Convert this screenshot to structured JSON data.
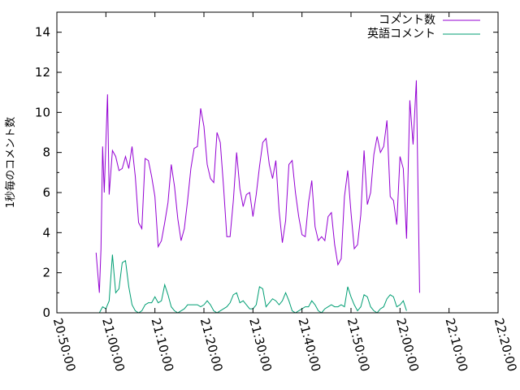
{
  "chart_data": {
    "type": "line",
    "title": "",
    "xlabel": "",
    "ylabel": "1秒毎のコメント数",
    "xlim": [
      "20:50:00",
      "22:20:00"
    ],
    "ylim": [
      0,
      15
    ],
    "xticks": [
      "20:50:00",
      "21:00:00",
      "21:10:00",
      "21:20:00",
      "21:30:00",
      "21:40:00",
      "21:50:00",
      "22:00:00",
      "22:10:00",
      "22:20:00"
    ],
    "yticks": [
      "0",
      "2",
      "4",
      "6",
      "8",
      "10",
      "12",
      "14"
    ],
    "grid": false,
    "legend_position": "top-right",
    "series": [
      {
        "name": "コメント数",
        "color": "#9400d3",
        "points": [
          [
            "20:58:00",
            3.0
          ],
          [
            "20:58:40",
            1.0
          ],
          [
            "20:59:00",
            3.2
          ],
          [
            "20:59:20",
            8.3
          ],
          [
            "20:59:40",
            6.0
          ],
          [
            "21:00:00",
            8.5
          ],
          [
            "21:00:20",
            10.9
          ],
          [
            "21:00:40",
            5.9
          ],
          [
            "21:01:20",
            8.1
          ],
          [
            "21:02:00",
            7.8
          ],
          [
            "21:02:40",
            7.1
          ],
          [
            "21:03:20",
            7.2
          ],
          [
            "21:04:00",
            7.8
          ],
          [
            "21:04:40",
            7.2
          ],
          [
            "21:05:20",
            8.3
          ],
          [
            "21:06:00",
            6.8
          ],
          [
            "21:06:40",
            4.5
          ],
          [
            "21:07:20",
            4.2
          ],
          [
            "21:08:00",
            7.7
          ],
          [
            "21:08:40",
            7.6
          ],
          [
            "21:09:20",
            6.8
          ],
          [
            "21:10:00",
            5.8
          ],
          [
            "21:10:40",
            3.3
          ],
          [
            "21:11:20",
            3.6
          ],
          [
            "21:12:00",
            4.5
          ],
          [
            "21:12:40",
            5.5
          ],
          [
            "21:13:20",
            7.4
          ],
          [
            "21:14:00",
            6.3
          ],
          [
            "21:14:40",
            4.7
          ],
          [
            "21:15:20",
            3.6
          ],
          [
            "21:16:00",
            4.2
          ],
          [
            "21:16:40",
            5.6
          ],
          [
            "21:17:20",
            7.2
          ],
          [
            "21:18:00",
            8.2
          ],
          [
            "21:18:40",
            8.3
          ],
          [
            "21:19:20",
            10.2
          ],
          [
            "21:20:00",
            9.3
          ],
          [
            "21:20:40",
            7.4
          ],
          [
            "21:21:20",
            6.7
          ],
          [
            "21:22:00",
            6.5
          ],
          [
            "21:22:40",
            9.0
          ],
          [
            "21:23:20",
            8.5
          ],
          [
            "21:24:00",
            6.3
          ],
          [
            "21:24:40",
            3.8
          ],
          [
            "21:25:20",
            3.8
          ],
          [
            "21:26:00",
            5.6
          ],
          [
            "21:26:40",
            8.0
          ],
          [
            "21:27:20",
            6.2
          ],
          [
            "21:28:00",
            5.3
          ],
          [
            "21:28:40",
            5.9
          ],
          [
            "21:29:20",
            6.0
          ],
          [
            "21:30:00",
            4.8
          ],
          [
            "21:30:40",
            5.9
          ],
          [
            "21:31:20",
            7.3
          ],
          [
            "21:32:00",
            8.5
          ],
          [
            "21:32:40",
            8.7
          ],
          [
            "21:33:20",
            7.4
          ],
          [
            "21:34:00",
            6.7
          ],
          [
            "21:34:40",
            7.6
          ],
          [
            "21:35:20",
            5.1
          ],
          [
            "21:36:00",
            3.5
          ],
          [
            "21:36:40",
            4.6
          ],
          [
            "21:37:20",
            7.4
          ],
          [
            "21:38:00",
            7.6
          ],
          [
            "21:38:40",
            6.0
          ],
          [
            "21:39:20",
            4.8
          ],
          [
            "21:40:00",
            3.9
          ],
          [
            "21:40:40",
            3.8
          ],
          [
            "21:41:20",
            5.5
          ],
          [
            "21:42:00",
            6.6
          ],
          [
            "21:42:40",
            4.3
          ],
          [
            "21:43:20",
            3.6
          ],
          [
            "21:44:00",
            3.8
          ],
          [
            "21:44:40",
            3.6
          ],
          [
            "21:45:20",
            4.8
          ],
          [
            "21:46:00",
            5.0
          ],
          [
            "21:46:40",
            3.4
          ],
          [
            "21:47:20",
            2.4
          ],
          [
            "21:48:00",
            2.7
          ],
          [
            "21:48:40",
            5.8
          ],
          [
            "21:49:20",
            7.1
          ],
          [
            "21:50:00",
            5.0
          ],
          [
            "21:50:40",
            3.2
          ],
          [
            "21:51:20",
            3.4
          ],
          [
            "21:52:00",
            4.9
          ],
          [
            "21:52:40",
            8.1
          ],
          [
            "21:53:20",
            5.4
          ],
          [
            "21:54:00",
            6.0
          ],
          [
            "21:54:40",
            7.9
          ],
          [
            "21:55:20",
            8.8
          ],
          [
            "21:56:00",
            8.0
          ],
          [
            "21:56:40",
            8.3
          ],
          [
            "21:57:20",
            9.6
          ],
          [
            "21:58:00",
            5.8
          ],
          [
            "21:58:40",
            5.6
          ],
          [
            "21:59:20",
            4.4
          ],
          [
            "22:00:00",
            7.8
          ],
          [
            "22:00:40",
            7.2
          ],
          [
            "22:01:20",
            3.7
          ],
          [
            "22:02:00",
            10.6
          ],
          [
            "22:02:40",
            8.4
          ],
          [
            "22:03:20",
            11.6
          ],
          [
            "22:04:00",
            1.0
          ]
        ]
      },
      {
        "name": "英語コメント",
        "color": "#009e73",
        "points": [
          [
            "20:58:40",
            0.0
          ],
          [
            "20:59:20",
            0.3
          ],
          [
            "21:00:00",
            0.2
          ],
          [
            "21:00:40",
            0.6
          ],
          [
            "21:01:20",
            2.9
          ],
          [
            "21:02:00",
            1.0
          ],
          [
            "21:02:40",
            1.2
          ],
          [
            "21:03:20",
            2.5
          ],
          [
            "21:04:00",
            2.6
          ],
          [
            "21:04:40",
            1.3
          ],
          [
            "21:05:20",
            0.4
          ],
          [
            "21:06:00",
            0.1
          ],
          [
            "21:06:40",
            0.0
          ],
          [
            "21:07:20",
            0.1
          ],
          [
            "21:08:00",
            0.4
          ],
          [
            "21:08:40",
            0.5
          ],
          [
            "21:09:20",
            0.5
          ],
          [
            "21:10:00",
            0.8
          ],
          [
            "21:10:40",
            0.5
          ],
          [
            "21:11:20",
            0.6
          ],
          [
            "21:12:00",
            1.4
          ],
          [
            "21:12:40",
            0.9
          ],
          [
            "21:13:20",
            0.3
          ],
          [
            "21:14:00",
            0.1
          ],
          [
            "21:14:40",
            0.0
          ],
          [
            "21:15:20",
            0.1
          ],
          [
            "21:16:00",
            0.2
          ],
          [
            "21:16:40",
            0.4
          ],
          [
            "21:17:20",
            0.4
          ],
          [
            "21:18:00",
            0.4
          ],
          [
            "21:18:40",
            0.4
          ],
          [
            "21:19:20",
            0.3
          ],
          [
            "21:20:00",
            0.4
          ],
          [
            "21:20:40",
            0.6
          ],
          [
            "21:21:20",
            0.4
          ],
          [
            "21:22:00",
            0.1
          ],
          [
            "21:22:40",
            0.0
          ],
          [
            "21:23:20",
            0.1
          ],
          [
            "21:24:00",
            0.2
          ],
          [
            "21:24:40",
            0.3
          ],
          [
            "21:25:20",
            0.5
          ],
          [
            "21:26:00",
            0.9
          ],
          [
            "21:26:40",
            1.0
          ],
          [
            "21:27:20",
            0.5
          ],
          [
            "21:28:00",
            0.6
          ],
          [
            "21:28:40",
            0.4
          ],
          [
            "21:29:20",
            0.2
          ],
          [
            "21:30:00",
            0.2
          ],
          [
            "21:30:40",
            0.4
          ],
          [
            "21:31:20",
            1.3
          ],
          [
            "21:32:00",
            1.2
          ],
          [
            "21:32:40",
            0.3
          ],
          [
            "21:33:20",
            0.5
          ],
          [
            "21:34:00",
            0.7
          ],
          [
            "21:34:40",
            0.6
          ],
          [
            "21:35:20",
            0.4
          ],
          [
            "21:36:00",
            0.6
          ],
          [
            "21:36:40",
            1.0
          ],
          [
            "21:37:20",
            0.6
          ],
          [
            "21:38:00",
            0.1
          ],
          [
            "21:38:40",
            0.0
          ],
          [
            "21:39:20",
            0.1
          ],
          [
            "21:40:00",
            0.2
          ],
          [
            "21:40:40",
            0.3
          ],
          [
            "21:41:20",
            0.3
          ],
          [
            "21:42:00",
            0.6
          ],
          [
            "21:42:40",
            0.4
          ],
          [
            "21:43:20",
            0.1
          ],
          [
            "21:44:00",
            0.0
          ],
          [
            "21:44:40",
            0.2
          ],
          [
            "21:45:20",
            0.3
          ],
          [
            "21:46:00",
            0.4
          ],
          [
            "21:46:40",
            0.3
          ],
          [
            "21:47:20",
            0.3
          ],
          [
            "21:48:00",
            0.4
          ],
          [
            "21:48:40",
            0.3
          ],
          [
            "21:49:20",
            1.3
          ],
          [
            "21:50:00",
            0.8
          ],
          [
            "21:50:40",
            0.4
          ],
          [
            "21:51:20",
            0.1
          ],
          [
            "21:52:00",
            0.3
          ],
          [
            "21:52:40",
            0.9
          ],
          [
            "21:53:20",
            0.8
          ],
          [
            "21:54:00",
            0.3
          ],
          [
            "21:54:40",
            0.1
          ],
          [
            "21:55:20",
            0.0
          ],
          [
            "21:56:00",
            0.2
          ],
          [
            "21:56:40",
            0.3
          ],
          [
            "21:57:20",
            0.7
          ],
          [
            "21:58:00",
            0.9
          ],
          [
            "21:58:40",
            0.8
          ],
          [
            "21:59:20",
            0.3
          ],
          [
            "22:00:00",
            0.4
          ],
          [
            "22:00:40",
            0.6
          ],
          [
            "22:01:20",
            0.1
          ]
        ]
      }
    ]
  }
}
